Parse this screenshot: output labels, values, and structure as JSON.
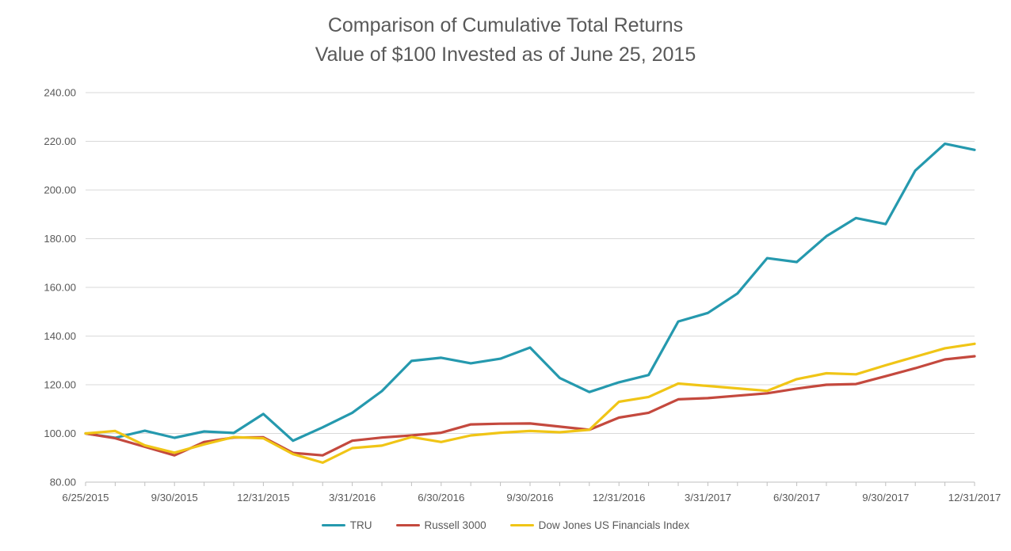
{
  "title": {
    "line1": "Comparison of Cumulative Total Returns",
    "line2": "Value of $100 Invested as of June 25, 2015"
  },
  "colors": {
    "title_text": "#595959",
    "axis_text": "#595959",
    "gridline": "#d9d9d9",
    "axis_line": "#bfbfbf",
    "background": "#ffffff"
  },
  "chart_data": {
    "type": "line",
    "title": "Comparison of Cumulative Total Returns — Value of $100 Invested as of June 25, 2015",
    "grid": "horizontal",
    "legend_position": "bottom",
    "ylim": [
      80,
      240
    ],
    "y_tick_step": 20,
    "y_tick_labels": [
      "240.00",
      "220.00",
      "200.00",
      "180.00",
      "160.00",
      "140.00",
      "120.00",
      "100.00",
      "80.00"
    ],
    "x_tick_interval_months": 1,
    "x_label_every_n_points": 3,
    "x_axis_labels": [
      "6/25/2015",
      "9/30/2015",
      "12/31/2015",
      "3/31/2016",
      "6/30/2016",
      "9/30/2016",
      "12/31/2016",
      "3/31/2017",
      "6/30/2017",
      "9/30/2017",
      "12/31/2017"
    ],
    "x": [
      "6/25/2015",
      "7/31/2015",
      "8/31/2015",
      "9/30/2015",
      "10/31/2015",
      "11/30/2015",
      "12/31/2015",
      "1/31/2016",
      "2/29/2016",
      "3/31/2016",
      "4/30/2016",
      "5/31/2016",
      "6/30/2016",
      "7/31/2016",
      "8/31/2016",
      "9/30/2016",
      "10/31/2016",
      "11/30/2016",
      "12/31/2016",
      "1/31/2017",
      "2/28/2017",
      "3/31/2017",
      "4/30/2017",
      "5/31/2017",
      "6/30/2017",
      "7/31/2017",
      "8/31/2017",
      "9/30/2017",
      "10/31/2017",
      "11/30/2017",
      "12/31/2017"
    ],
    "series": [
      {
        "name": "TRU",
        "color": "#2599ae",
        "values": [
          100,
          98.2,
          101.1,
          98.2,
          100.8,
          100.2,
          108,
          97,
          102.5,
          108.5,
          117.4,
          129.8,
          131.1,
          128.8,
          130.7,
          135.3,
          122.8,
          117,
          121,
          124,
          146,
          149.5,
          157.5,
          172,
          170.4,
          181,
          188.5,
          186,
          208,
          219,
          216.5
        ]
      },
      {
        "name": "Russell 3000",
        "color": "#c4493e",
        "values": [
          100,
          98,
          94.5,
          91,
          96.5,
          98.3,
          98.4,
          92,
          91,
          97,
          98.3,
          99.2,
          100.3,
          103.7,
          104,
          104.1,
          102.8,
          101.5,
          106.5,
          108.5,
          114,
          114.5,
          115.5,
          116.5,
          118.4,
          120,
          120.3,
          123.5,
          126.8,
          130.4,
          131.7
        ]
      },
      {
        "name": "Dow Jones US Financials Index",
        "color": "#f0c516",
        "values": [
          100,
          101,
          95.1,
          92.1,
          95.5,
          98.5,
          98,
          91.5,
          88,
          94,
          95,
          98.5,
          96.5,
          99.2,
          100.3,
          101,
          100.5,
          101.5,
          113,
          115,
          120.5,
          119.5,
          118.5,
          117.5,
          122.3,
          124.7,
          124.3,
          128,
          131.5,
          135,
          136.8
        ]
      }
    ]
  }
}
